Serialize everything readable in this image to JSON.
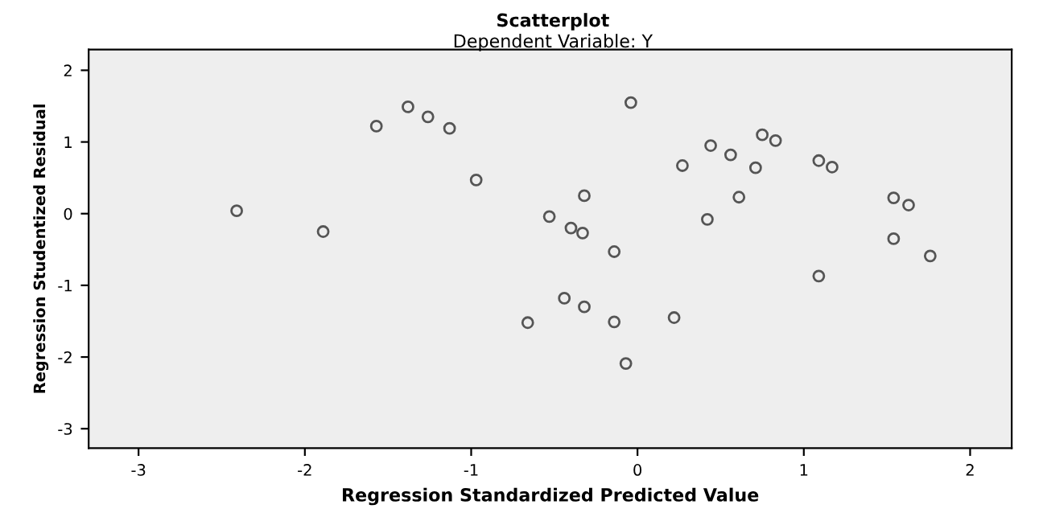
{
  "chart_data": {
    "type": "scatter",
    "title": "Scatterplot",
    "subtitle": "Dependent Variable: Y",
    "xlabel": "Regression Standardized Predicted Value",
    "ylabel": "Regression Studentized Residual",
    "xlim": [
      -3.3,
      2.25
    ],
    "ylim": [
      -3.27,
      2.29
    ],
    "xticks": [
      -3,
      -2,
      -1,
      0,
      1,
      2
    ],
    "yticks": [
      -3,
      -2,
      -1,
      0,
      1,
      2
    ],
    "grid": false,
    "marker": "circle",
    "series": [
      {
        "color": "#555555",
        "x": [
          -2.41,
          -1.89,
          -1.57,
          -1.38,
          -1.26,
          -1.13,
          -0.97,
          -0.04,
          0.27,
          0.44,
          0.56,
          0.71,
          0.75,
          0.83,
          1.09,
          1.17,
          1.54,
          1.63,
          1.54,
          1.76,
          1.09,
          -0.32,
          -0.53,
          -0.4,
          -0.33,
          -0.14,
          0.61,
          0.42,
          -0.44,
          -0.32,
          -0.66,
          -0.14,
          0.22,
          -0.07
        ],
        "values": [
          0.04,
          -0.25,
          1.22,
          1.49,
          1.35,
          1.19,
          0.47,
          1.55,
          0.67,
          0.95,
          0.82,
          0.64,
          1.1,
          1.02,
          0.74,
          0.65,
          0.22,
          0.12,
          -0.35,
          -0.59,
          -0.87,
          0.25,
          -0.04,
          -0.2,
          -0.27,
          -0.53,
          0.23,
          -0.08,
          -1.18,
          -1.3,
          -1.52,
          -1.51,
          -1.45,
          -2.09
        ]
      }
    ]
  }
}
